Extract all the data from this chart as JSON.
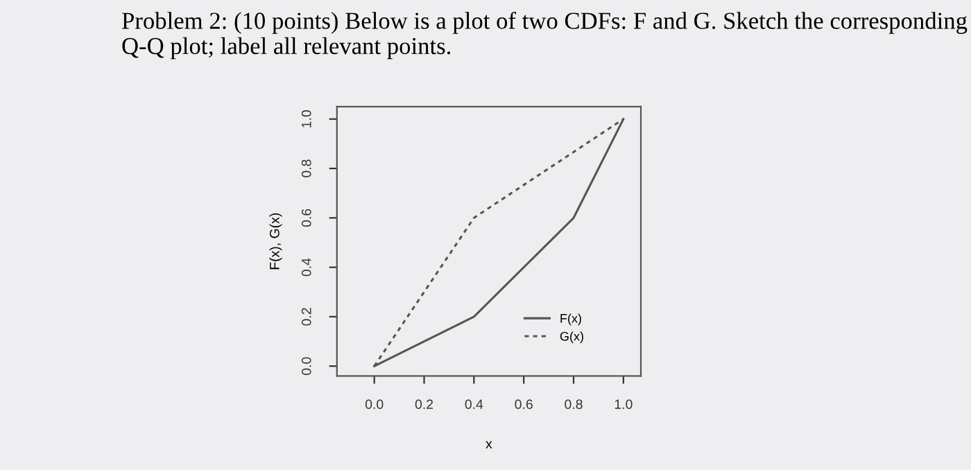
{
  "chart_data": {
    "type": "line",
    "title": "Problem 2: (10 points) Below is a plot of two CDFs: F and G. Sketch the corresponding Q-Q plot; label all relevant points.",
    "xlabel": "x",
    "ylabel": "F(x), G(x)",
    "series": [
      {
        "name": "F(x)",
        "color": "#555555",
        "x": [
          0,
          0.4,
          0.8,
          1.0
        ],
        "values": [
          0,
          0.2,
          0.6,
          1.0
        ],
        "line_style": "solid"
      },
      {
        "name": "G(x)",
        "color": "#555555",
        "x": [
          0,
          0.4,
          1.0
        ],
        "values": [
          0,
          0.6,
          1.0
        ],
        "line_style": "dotted"
      }
    ],
    "xlim": [
      -0.15,
      1.07
    ],
    "ylim": [
      -0.04,
      1.05
    ],
    "xticks": [
      {
        "value": 0,
        "label": "0.0"
      },
      0.2,
      0.4,
      0.6,
      0.8,
      {
        "value": 1,
        "label": "1.0"
      }
    ],
    "yticks": [
      {
        "value": 0,
        "label": "0.0"
      },
      0.2,
      0.4,
      0.6,
      0.8,
      {
        "value": 1,
        "label": "1.0"
      }
    ],
    "grid": false,
    "legend": "bottom right",
    "marker": "none"
  }
}
